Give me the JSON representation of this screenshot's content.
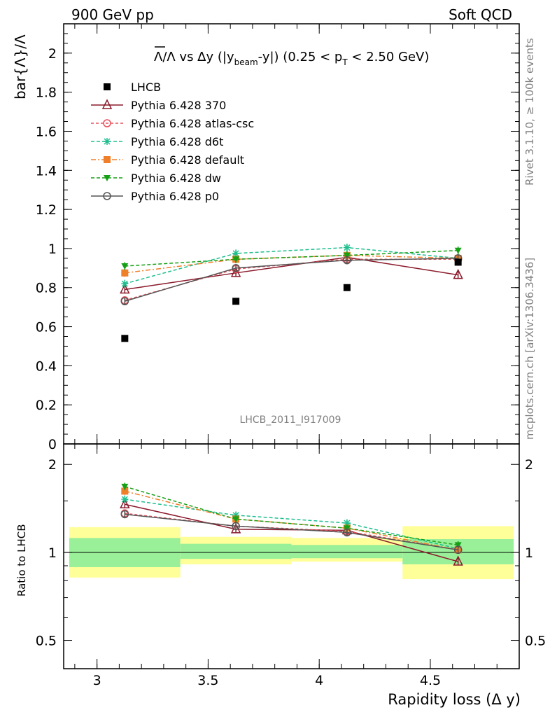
{
  "header": {
    "left": "900 GeV pp",
    "right": "Soft QCD"
  },
  "side": {
    "top": "Rivet 3.1.10, ≥ 100k events",
    "bottom": "mcplots.cern.ch [arXiv:1306.3436]"
  },
  "chart_data": [
    {
      "type": "line",
      "title_parts": {
        "lambda_bar": "Λ",
        "main": "/Λ vs Δy (|y",
        "sub1": "beam",
        "mid": "-y|) (0.25 < p",
        "sub2": "T",
        "end": " < 2.50 GeV)"
      },
      "ylabel": "bar{Λ}/Λ",
      "watermark": "LHCB_2011_I917009",
      "ylim": [
        0,
        2.15
      ],
      "yticks": [
        "0",
        "0.2",
        "0.4",
        "0.6",
        "0.8",
        "1",
        "1.2",
        "1.4",
        "1.6",
        "1.8",
        "2"
      ],
      "x": [
        3.125,
        3.625,
        4.125,
        4.625
      ],
      "xlim": [
        2.85,
        4.9
      ],
      "series": [
        {
          "name": "LHCB",
          "color": "#000000",
          "dash": "none",
          "marker": "square",
          "values": [
            0.54,
            0.73,
            0.8,
            0.93
          ],
          "errors": [
            0.01,
            0.01,
            0.01,
            0.01
          ]
        },
        {
          "name": "Pythia 6.428 370",
          "color": "#8b1a2b",
          "dash": "none",
          "marker": "triangle-open",
          "values": [
            0.79,
            0.875,
            0.955,
            0.865
          ],
          "errors": [
            0.02,
            0.02,
            0.02,
            0.02
          ]
        },
        {
          "name": "Pythia 6.428 atlas-csc",
          "color": "#e8505b",
          "dash": "4,3",
          "marker": "circle-open",
          "values": [
            0.735,
            0.895,
            0.945,
            0.945
          ],
          "errors": [
            0.02,
            0.02,
            0.02,
            0.02
          ]
        },
        {
          "name": "Pythia 6.428 d6t",
          "color": "#1fbf8f",
          "dash": "5,3",
          "marker": "star",
          "values": [
            0.82,
            0.975,
            1.005,
            0.95
          ],
          "errors": [
            0.02,
            0.02,
            0.02,
            0.02
          ]
        },
        {
          "name": "Pythia 6.428 default",
          "color": "#f07f2a",
          "dash": "7,3,2,3",
          "marker": "square",
          "values": [
            0.875,
            0.945,
            0.965,
            0.95
          ],
          "errors": [
            0.02,
            0.02,
            0.02,
            0.02
          ]
        },
        {
          "name": "Pythia 6.428 dw",
          "color": "#16a016",
          "dash": "5,3",
          "marker": "triangle-down",
          "values": [
            0.91,
            0.945,
            0.965,
            0.99
          ],
          "errors": [
            0.02,
            0.02,
            0.02,
            0.02
          ]
        },
        {
          "name": "Pythia 6.428 p0",
          "color": "#555555",
          "dash": "none",
          "marker": "circle-open",
          "values": [
            0.73,
            0.9,
            0.94,
            0.95
          ],
          "errors": [
            0.02,
            0.02,
            0.02,
            0.02
          ]
        }
      ]
    },
    {
      "type": "line",
      "ylabel": "Ratio to LHCB",
      "yscale": "log",
      "ylim": [
        0.4,
        2.35
      ],
      "yticks": [
        "0.5",
        "1",
        "2"
      ],
      "xlabel": "Rapidity loss (Δ y)",
      "xticks": [
        "3",
        "3.5",
        "4",
        "4.5"
      ],
      "x": [
        3.125,
        3.625,
        4.125,
        4.625
      ],
      "bands": [
        {
          "xlo": 2.875,
          "xhi": 3.375,
          "inner": [
            0.89,
            1.12
          ],
          "outer": [
            0.82,
            1.22
          ]
        },
        {
          "xlo": 3.375,
          "xhi": 3.875,
          "inner": [
            0.95,
            1.07
          ],
          "outer": [
            0.91,
            1.13
          ]
        },
        {
          "xlo": 3.875,
          "xhi": 4.375,
          "inner": [
            0.955,
            1.06
          ],
          "outer": [
            0.93,
            1.12
          ]
        },
        {
          "xlo": 4.375,
          "xhi": 4.875,
          "inner": [
            0.91,
            1.11
          ],
          "outer": [
            0.81,
            1.23
          ]
        }
      ],
      "series": [
        {
          "name": "Pythia 6.428 370",
          "values": [
            1.46,
            1.2,
            1.19,
            0.93
          ]
        },
        {
          "name": "Pythia 6.428 atlas-csc",
          "values": [
            1.36,
            1.23,
            1.18,
            1.02
          ]
        },
        {
          "name": "Pythia 6.428 d6t",
          "values": [
            1.52,
            1.34,
            1.26,
            1.03
          ]
        },
        {
          "name": "Pythia 6.428 default",
          "values": [
            1.62,
            1.3,
            1.21,
            1.02
          ]
        },
        {
          "name": "Pythia 6.428 dw",
          "values": [
            1.68,
            1.3,
            1.21,
            1.06
          ]
        },
        {
          "name": "Pythia 6.428 p0",
          "values": [
            1.35,
            1.23,
            1.17,
            1.02
          ]
        }
      ]
    }
  ]
}
